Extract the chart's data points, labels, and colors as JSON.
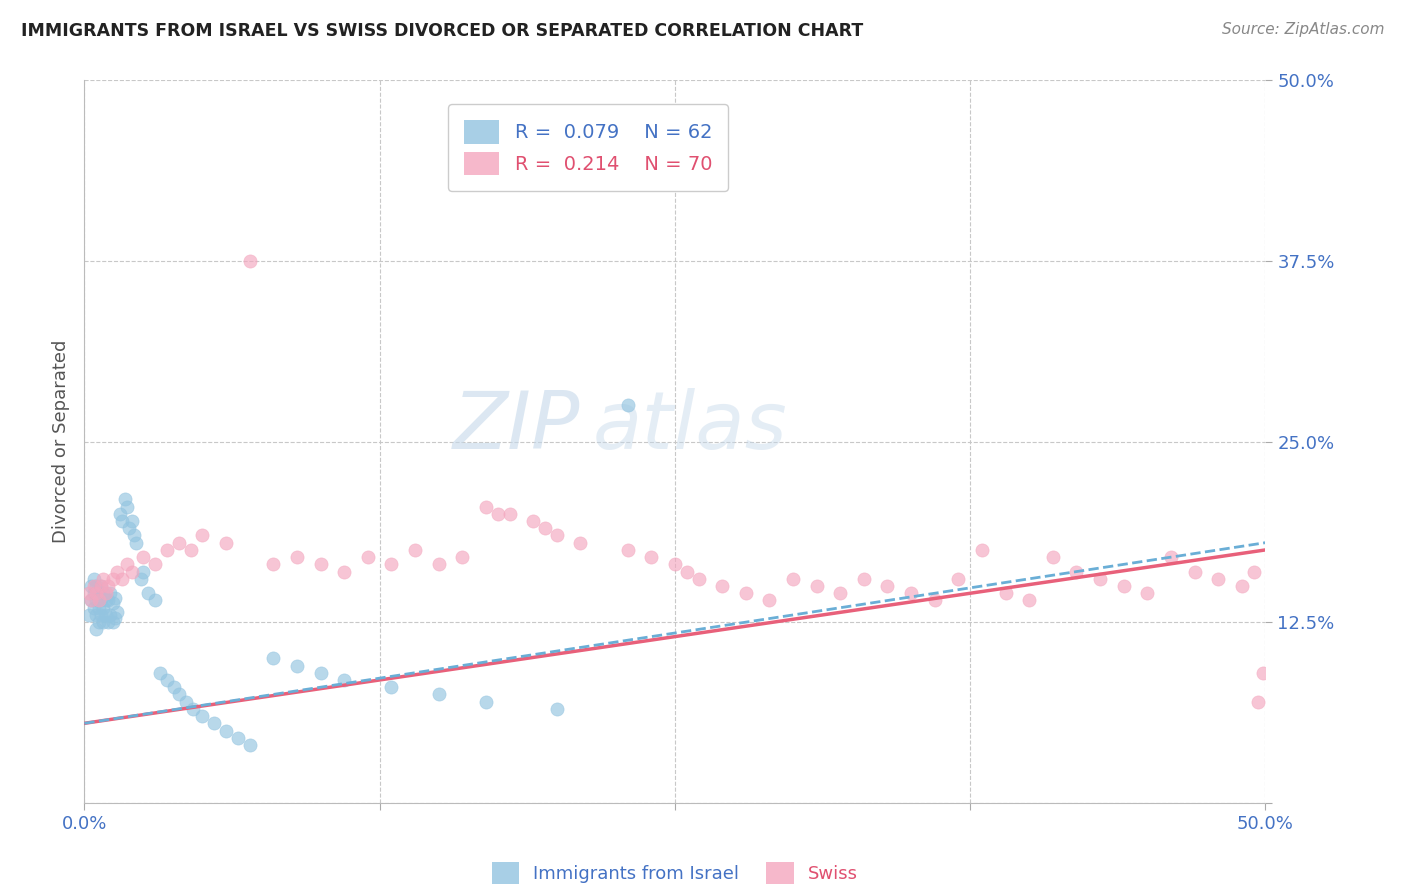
{
  "title": "IMMIGRANTS FROM ISRAEL VS SWISS DIVORCED OR SEPARATED CORRELATION CHART",
  "source": "Source: ZipAtlas.com",
  "ylabel": "Divorced or Separated",
  "legend_label1": "Immigrants from Israel",
  "legend_label2": "Swiss",
  "R1": 0.079,
  "N1": 62,
  "R2": 0.214,
  "N2": 70,
  "color_blue": "#93c4e0",
  "color_pink": "#f4a7bf",
  "line_blue": "#6aaed6",
  "line_pink": "#e8607a",
  "xlim": [
    0.0,
    0.5
  ],
  "ylim": [
    0.0,
    0.5
  ],
  "watermark_zip": "ZIP",
  "watermark_atlas": "atlas",
  "blue_x": [
    0.002,
    0.003,
    0.003,
    0.004,
    0.004,
    0.004,
    0.005,
    0.005,
    0.005,
    0.005,
    0.006,
    0.006,
    0.006,
    0.007,
    0.007,
    0.007,
    0.008,
    0.008,
    0.008,
    0.009,
    0.009,
    0.01,
    0.01,
    0.011,
    0.011,
    0.012,
    0.012,
    0.013,
    0.013,
    0.014,
    0.015,
    0.016,
    0.017,
    0.018,
    0.019,
    0.02,
    0.021,
    0.022,
    0.024,
    0.025,
    0.027,
    0.03,
    0.032,
    0.035,
    0.038,
    0.04,
    0.043,
    0.046,
    0.05,
    0.055,
    0.06,
    0.065,
    0.07,
    0.08,
    0.09,
    0.1,
    0.11,
    0.13,
    0.15,
    0.17,
    0.2,
    0.23
  ],
  "blue_y": [
    0.13,
    0.14,
    0.15,
    0.135,
    0.145,
    0.155,
    0.12,
    0.13,
    0.14,
    0.15,
    0.125,
    0.135,
    0.145,
    0.13,
    0.14,
    0.15,
    0.125,
    0.135,
    0.145,
    0.13,
    0.14,
    0.125,
    0.14,
    0.13,
    0.145,
    0.125,
    0.138,
    0.128,
    0.142,
    0.132,
    0.2,
    0.195,
    0.21,
    0.205,
    0.19,
    0.195,
    0.185,
    0.18,
    0.155,
    0.16,
    0.145,
    0.14,
    0.09,
    0.085,
    0.08,
    0.075,
    0.07,
    0.065,
    0.06,
    0.055,
    0.05,
    0.045,
    0.04,
    0.1,
    0.095,
    0.09,
    0.085,
    0.08,
    0.075,
    0.07,
    0.065,
    0.275
  ],
  "pink_x": [
    0.002,
    0.003,
    0.004,
    0.005,
    0.006,
    0.007,
    0.008,
    0.009,
    0.01,
    0.012,
    0.014,
    0.016,
    0.018,
    0.02,
    0.025,
    0.03,
    0.035,
    0.04,
    0.045,
    0.05,
    0.06,
    0.07,
    0.08,
    0.09,
    0.1,
    0.11,
    0.12,
    0.13,
    0.14,
    0.15,
    0.16,
    0.17,
    0.175,
    0.18,
    0.19,
    0.195,
    0.2,
    0.21,
    0.22,
    0.23,
    0.24,
    0.25,
    0.255,
    0.26,
    0.27,
    0.28,
    0.29,
    0.3,
    0.31,
    0.32,
    0.33,
    0.34,
    0.35,
    0.36,
    0.37,
    0.38,
    0.39,
    0.4,
    0.41,
    0.42,
    0.43,
    0.44,
    0.45,
    0.46,
    0.47,
    0.48,
    0.49,
    0.495,
    0.497,
    0.499
  ],
  "pink_y": [
    0.145,
    0.14,
    0.15,
    0.145,
    0.14,
    0.15,
    0.155,
    0.145,
    0.15,
    0.155,
    0.16,
    0.155,
    0.165,
    0.16,
    0.17,
    0.165,
    0.175,
    0.18,
    0.175,
    0.185,
    0.18,
    0.375,
    0.165,
    0.17,
    0.165,
    0.16,
    0.17,
    0.165,
    0.175,
    0.165,
    0.17,
    0.205,
    0.2,
    0.2,
    0.195,
    0.19,
    0.185,
    0.18,
    0.44,
    0.175,
    0.17,
    0.165,
    0.16,
    0.155,
    0.15,
    0.145,
    0.14,
    0.155,
    0.15,
    0.145,
    0.155,
    0.15,
    0.145,
    0.14,
    0.155,
    0.175,
    0.145,
    0.14,
    0.17,
    0.16,
    0.155,
    0.15,
    0.145,
    0.17,
    0.16,
    0.155,
    0.15,
    0.16,
    0.07,
    0.09
  ]
}
